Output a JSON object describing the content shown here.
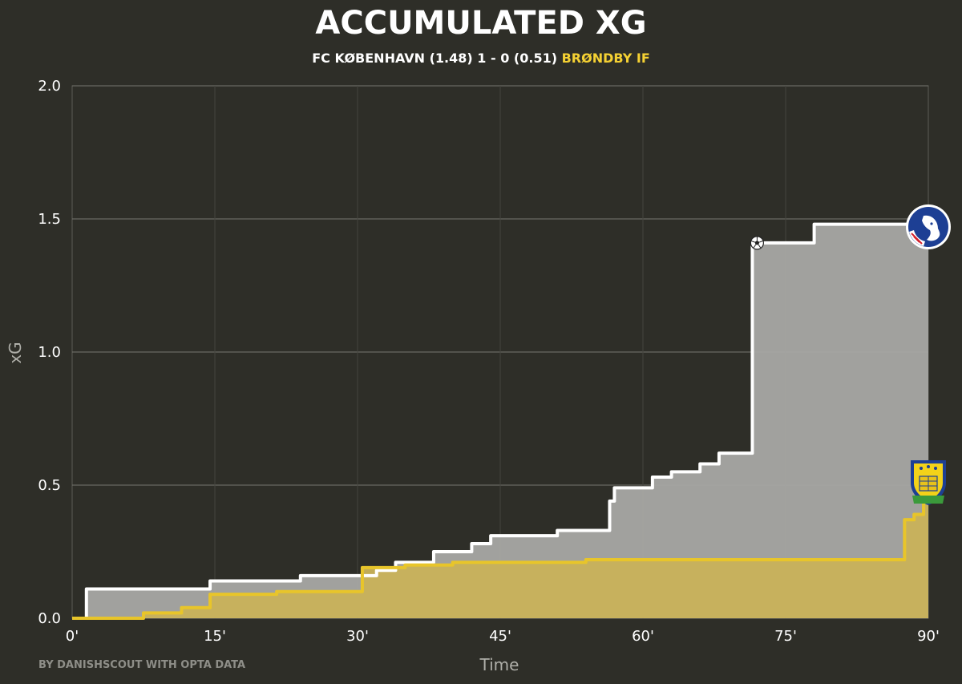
{
  "title": "ACCUMULATED XG",
  "subtitle": {
    "home_team": "FC KØBENHAVN",
    "home_xg": "(1.48)",
    "score": "1 - 0",
    "away_xg": "(0.51)",
    "away_team": "BRØNDBY IF"
  },
  "credit": "BY DANISHSCOUT WITH OPTA DATA",
  "colors": {
    "background": "#2e2e28",
    "home_line": "#ffffff",
    "home_fill": "#a8a8a4",
    "away_line": "#e8c52a",
    "away_fill": "#c9b25a",
    "grid": "#5c5c56"
  },
  "icons": {
    "home_badge": "fc-kobenhavn-badge-icon",
    "away_badge": "brondby-badge-icon",
    "goal_marker": "soccer-ball-icon"
  },
  "chart_data": {
    "type": "line",
    "title": "ACCUMULATED XG",
    "xlabel": "Time",
    "ylabel": "xG",
    "xlim": [
      0,
      90
    ],
    "ylim": [
      0,
      2.0
    ],
    "x_ticks": [
      0,
      15,
      30,
      45,
      60,
      75,
      90
    ],
    "x_tick_labels": [
      "0'",
      "15'",
      "30'",
      "45'",
      "60'",
      "75'",
      "90'"
    ],
    "y_ticks": [
      0.0,
      0.5,
      1.0,
      1.5,
      2.0
    ],
    "y_tick_labels": [
      "0.0",
      "0.5",
      "1.0",
      "1.5",
      "2.0"
    ],
    "grid": true,
    "series": [
      {
        "name": "FC KØBENHAVN",
        "step_points": [
          [
            0,
            0
          ],
          [
            1.5,
            0.11
          ],
          [
            14.5,
            0.14
          ],
          [
            24,
            0.16
          ],
          [
            32,
            0.18
          ],
          [
            34,
            0.21
          ],
          [
            38,
            0.25
          ],
          [
            42,
            0.28
          ],
          [
            44,
            0.31
          ],
          [
            51,
            0.33
          ],
          [
            56.5,
            0.44
          ],
          [
            57,
            0.49
          ],
          [
            61,
            0.53
          ],
          [
            63,
            0.55
          ],
          [
            66,
            0.58
          ],
          [
            68,
            0.62
          ],
          [
            71.5,
            1.41
          ],
          [
            78,
            1.48
          ],
          [
            90,
            1.48
          ]
        ]
      },
      {
        "name": "BRØNDBY IF",
        "step_points": [
          [
            0,
            0
          ],
          [
            7.5,
            0.02
          ],
          [
            11.5,
            0.04
          ],
          [
            14.5,
            0.09
          ],
          [
            21.5,
            0.1
          ],
          [
            30.5,
            0.19
          ],
          [
            35,
            0.2
          ],
          [
            40,
            0.21
          ],
          [
            54,
            0.22
          ],
          [
            87.5,
            0.37
          ],
          [
            88.5,
            0.39
          ],
          [
            89.5,
            0.51
          ],
          [
            90,
            0.51
          ]
        ]
      }
    ],
    "annotations": [
      {
        "type": "goal",
        "team": "FC KØBENHAVN",
        "minute": 72,
        "xg": 1.41
      }
    ]
  }
}
